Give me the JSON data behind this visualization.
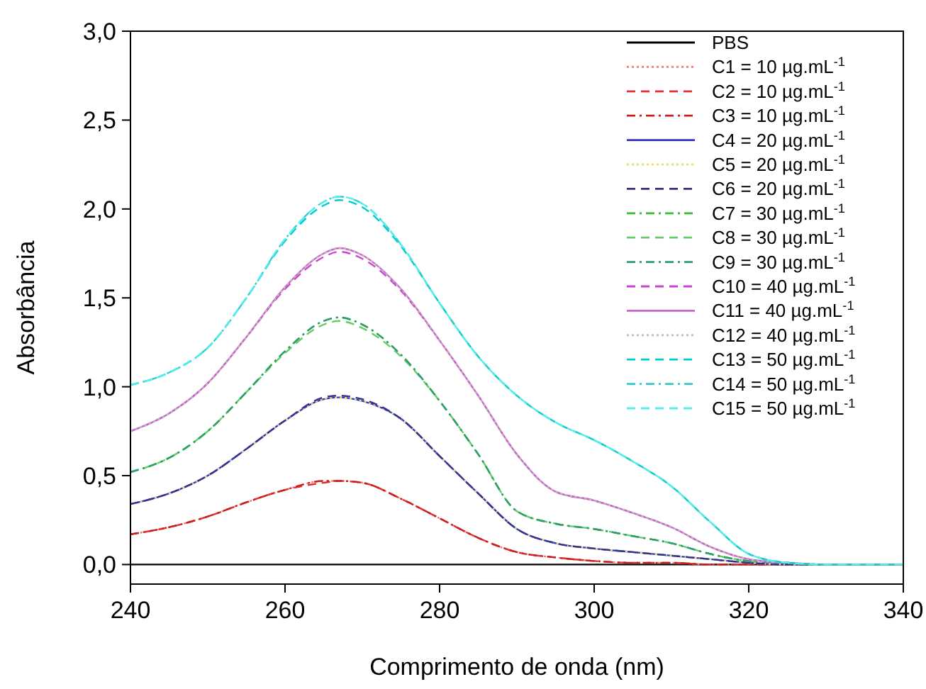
{
  "chart_data": {
    "type": "line",
    "xlabel": "Comprimento de onda (nm)",
    "ylabel": "Absorbância",
    "x": [
      240,
      245,
      250,
      255,
      260,
      265,
      267,
      270,
      275,
      280,
      285,
      290,
      295,
      300,
      305,
      310,
      315,
      320,
      325,
      330,
      340
    ],
    "xlim": [
      240,
      340
    ],
    "xticks": [
      240,
      260,
      280,
      300,
      320,
      340
    ],
    "ylim": [
      -0.11,
      3.0
    ],
    "yticks": [
      {
        "value": 0,
        "label": "0,0"
      },
      {
        "value": 0.5,
        "label": "0,5"
      },
      {
        "value": 1,
        "label": "1,0"
      },
      {
        "value": 1.5,
        "label": "1,5"
      },
      {
        "value": 2,
        "label": "2,0"
      },
      {
        "value": 2.5,
        "label": "2,5"
      },
      {
        "value": 3,
        "label": "3,0"
      }
    ],
    "legend": "top right",
    "grid": false,
    "series": [
      {
        "name": "PBS",
        "color": "#000000",
        "line_style": "solid",
        "values": [
          0,
          0,
          0,
          0,
          0,
          0,
          0,
          0,
          0,
          0,
          0,
          0,
          0,
          0,
          0,
          0,
          0,
          0,
          0,
          0,
          0
        ]
      },
      {
        "name": "C1 = 10 µg.mL$^{-1}$",
        "color": "#f08080",
        "line_style": "dotted",
        "values": [
          0.17,
          0.21,
          0.27,
          0.35,
          0.42,
          0.47,
          0.47,
          0.46,
          0.37,
          0.26,
          0.15,
          0.07,
          0.04,
          0.02,
          0.01,
          0.01,
          0,
          0,
          0,
          0,
          0
        ]
      },
      {
        "name": "C2 = 10 µg.mL$^{-1}$",
        "color": "#e03030",
        "line_style": "dashed",
        "values": [
          0.17,
          0.21,
          0.27,
          0.35,
          0.42,
          0.46,
          0.47,
          0.46,
          0.37,
          0.26,
          0.15,
          0.07,
          0.04,
          0.02,
          0.01,
          0.01,
          0,
          0,
          0,
          0,
          0
        ]
      },
      {
        "name": "C3 = 10 µg.mL$^{-1}$",
        "color": "#c81e1e",
        "line_style": "dashdot",
        "values": [
          0.17,
          0.21,
          0.27,
          0.35,
          0.42,
          0.47,
          0.47,
          0.46,
          0.37,
          0.26,
          0.15,
          0.07,
          0.04,
          0.02,
          0.01,
          0.01,
          0,
          0,
          0,
          0,
          0
        ]
      },
      {
        "name": "C4 = 20 µg.mL$^{-1}$",
        "color": "#3333cc",
        "line_style": "solid",
        "values": [
          0.34,
          0.4,
          0.5,
          0.65,
          0.81,
          0.93,
          0.94,
          0.92,
          0.82,
          0.61,
          0.4,
          0.2,
          0.12,
          0.09,
          0.07,
          0.05,
          0.03,
          0.01,
          0,
          0,
          0
        ]
      },
      {
        "name": "C5 = 20 µg.mL$^{-1}$",
        "color": "#e6e070",
        "line_style": "dotted",
        "values": [
          0.34,
          0.4,
          0.5,
          0.65,
          0.81,
          0.93,
          0.94,
          0.92,
          0.82,
          0.61,
          0.4,
          0.2,
          0.12,
          0.09,
          0.07,
          0.05,
          0.03,
          0.01,
          0,
          0,
          0
        ]
      },
      {
        "name": "C6 = 20 µg.mL$^{-1}$",
        "color": "#333388",
        "line_style": "dashed",
        "values": [
          0.34,
          0.4,
          0.5,
          0.65,
          0.81,
          0.94,
          0.95,
          0.93,
          0.82,
          0.61,
          0.4,
          0.2,
          0.12,
          0.09,
          0.07,
          0.05,
          0.03,
          0.01,
          0,
          0,
          0
        ]
      },
      {
        "name": "C7 = 30 µg.mL$^{-1}$",
        "color": "#33bb33",
        "line_style": "dashdot",
        "values": [
          0.52,
          0.6,
          0.75,
          0.97,
          1.2,
          1.37,
          1.39,
          1.35,
          1.18,
          0.92,
          0.62,
          0.3,
          0.23,
          0.2,
          0.16,
          0.12,
          0.06,
          0.02,
          0.01,
          0,
          0
        ]
      },
      {
        "name": "C8 = 30 µg.mL$^{-1}$",
        "color": "#66cc66",
        "line_style": "dashed",
        "values": [
          0.52,
          0.6,
          0.75,
          0.97,
          1.19,
          1.35,
          1.37,
          1.33,
          1.17,
          0.92,
          0.62,
          0.3,
          0.23,
          0.2,
          0.16,
          0.12,
          0.06,
          0.02,
          0.01,
          0,
          0
        ]
      },
      {
        "name": "C9 = 30 µg.mL$^{-1}$",
        "color": "#2e9e6e",
        "line_style": "dashdot",
        "values": [
          0.52,
          0.6,
          0.75,
          0.97,
          1.2,
          1.37,
          1.39,
          1.35,
          1.18,
          0.92,
          0.62,
          0.3,
          0.23,
          0.2,
          0.16,
          0.12,
          0.06,
          0.02,
          0.01,
          0,
          0
        ]
      },
      {
        "name": "C10 = 40 µg.mL$^{-1}$",
        "color": "#cc44cc",
        "line_style": "dashed",
        "values": [
          0.75,
          0.85,
          1.02,
          1.28,
          1.55,
          1.73,
          1.76,
          1.72,
          1.54,
          1.26,
          0.95,
          0.62,
          0.41,
          0.36,
          0.29,
          0.21,
          0.1,
          0.03,
          0.01,
          0,
          0
        ]
      },
      {
        "name": "C11 = 40 µg.mL$^{-1}$",
        "color": "#cc66cc",
        "line_style": "solid",
        "values": [
          0.75,
          0.85,
          1.02,
          1.28,
          1.56,
          1.75,
          1.78,
          1.74,
          1.55,
          1.26,
          0.95,
          0.62,
          0.41,
          0.36,
          0.29,
          0.21,
          0.1,
          0.03,
          0.01,
          0,
          0
        ]
      },
      {
        "name": "C12 = 40 µg.mL$^{-1}$",
        "color": "#bbbbbb",
        "line_style": "dotted",
        "values": [
          0.75,
          0.85,
          1.02,
          1.28,
          1.56,
          1.75,
          1.78,
          1.74,
          1.55,
          1.26,
          0.95,
          0.62,
          0.41,
          0.36,
          0.29,
          0.21,
          0.1,
          0.03,
          0.01,
          0,
          0
        ]
      },
      {
        "name": "C13 = 50 µg.mL$^{-1}$",
        "color": "#00cccc",
        "line_style": "dashed",
        "values": [
          1.01,
          1.08,
          1.22,
          1.5,
          1.82,
          2.02,
          2.05,
          2.01,
          1.79,
          1.47,
          1.17,
          0.95,
          0.8,
          0.7,
          0.58,
          0.44,
          0.24,
          0.06,
          0.01,
          0,
          0
        ]
      },
      {
        "name": "C14 = 50 µg.mL$^{-1}$",
        "color": "#33cccc",
        "line_style": "dashdot",
        "values": [
          1.01,
          1.08,
          1.22,
          1.5,
          1.83,
          2.04,
          2.07,
          2.03,
          1.8,
          1.47,
          1.17,
          0.95,
          0.8,
          0.7,
          0.58,
          0.44,
          0.24,
          0.06,
          0.01,
          0,
          0
        ]
      },
      {
        "name": "C15 = 50 µg.mL$^{-1}$",
        "color": "#55eeee",
        "line_style": "dashed",
        "values": [
          1.01,
          1.08,
          1.22,
          1.5,
          1.83,
          2.04,
          2.07,
          2.03,
          1.8,
          1.47,
          1.17,
          0.95,
          0.8,
          0.7,
          0.58,
          0.44,
          0.24,
          0.06,
          0.01,
          0,
          0
        ]
      }
    ]
  }
}
